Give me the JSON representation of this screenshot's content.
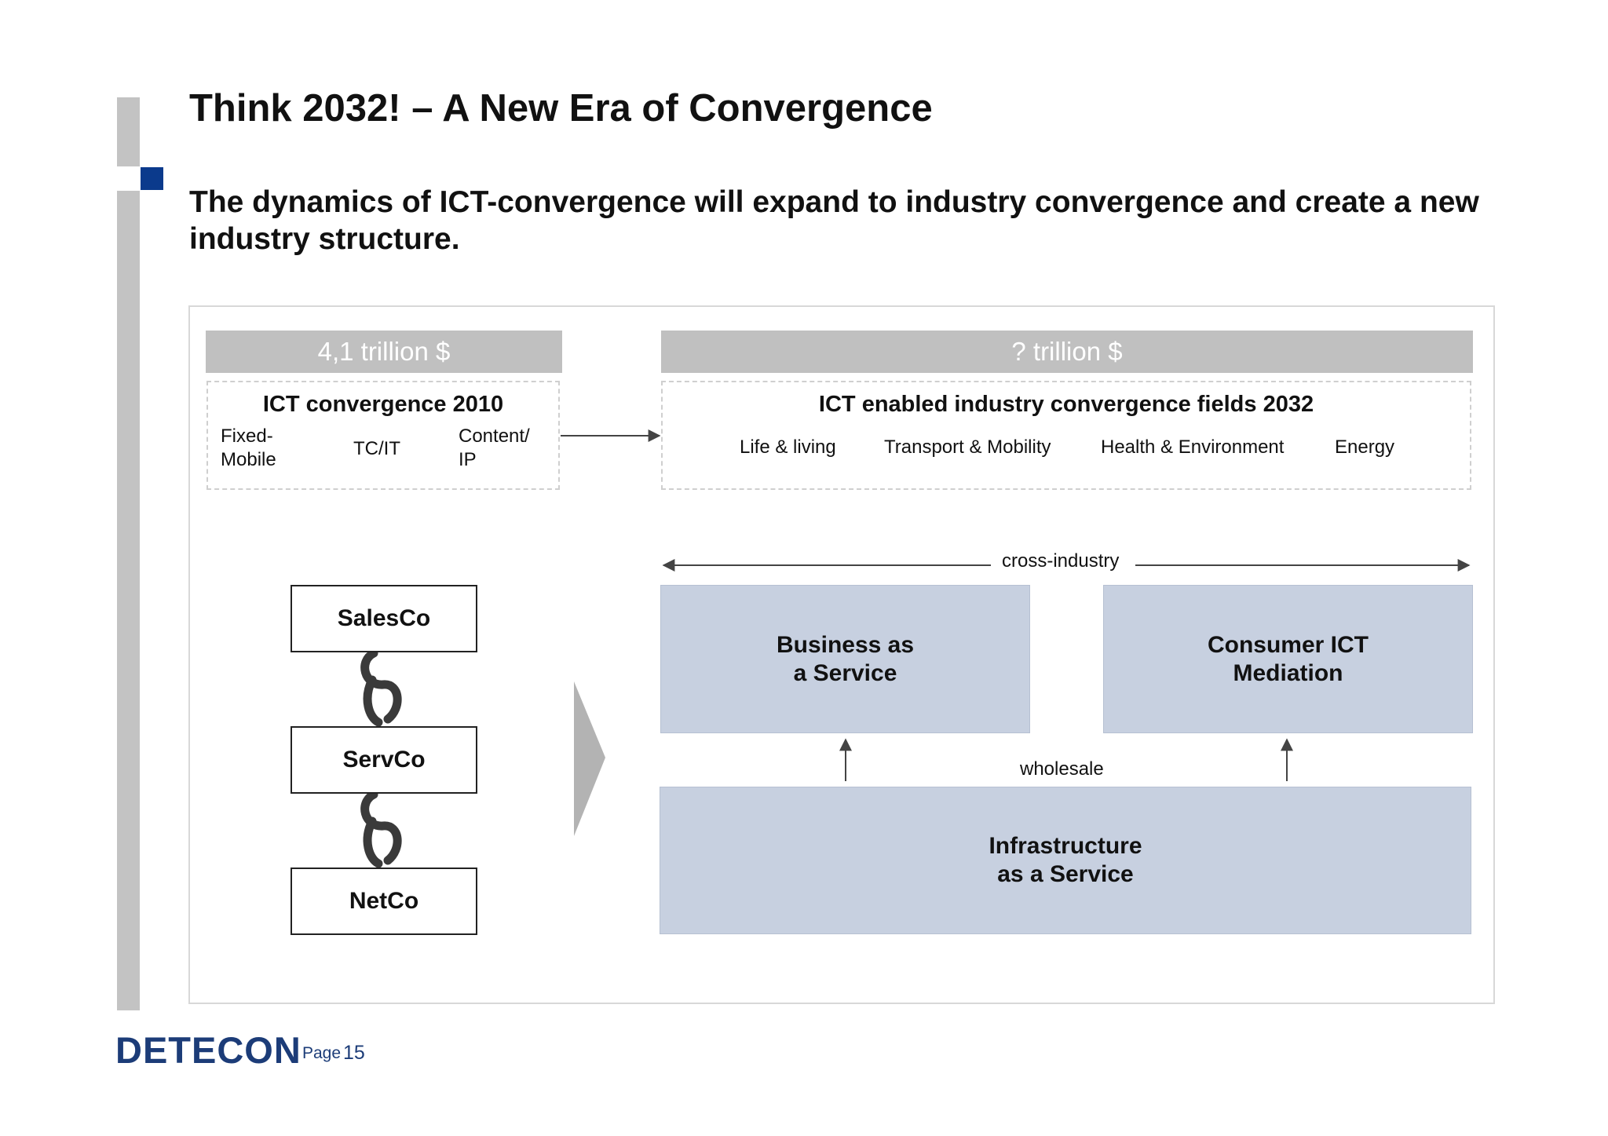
{
  "title": "Think 2032! – A New Era of Convergence",
  "subtitle": "The dynamics of ICT-convergence will expand to industry convergence and create a new industry structure.",
  "left_panel": {
    "value_header": "4,1 trillion $",
    "box_title": "ICT convergence 2010",
    "items": [
      "Fixed-\nMobile",
      "TC/IT",
      "Content/\nIP"
    ]
  },
  "right_panel": {
    "value_header": "? trillion $",
    "box_title": "ICT enabled industry convergence fields 2032",
    "fields": [
      "Life & living",
      "Transport & Mobility",
      "Health & Environment",
      "Energy"
    ]
  },
  "chain": [
    "SalesCo",
    "ServCo",
    "NetCo"
  ],
  "structure": {
    "cross_label": "cross-industry",
    "wholesale_label": "wholesale",
    "baas": "Business as\na Service",
    "consumer": "Consumer ICT\nMediation",
    "iaas": "Infrastructure\nas a Service"
  },
  "footer": {
    "logo": "DETECON",
    "page_label": "Page",
    "page_number": "15"
  },
  "colors": {
    "accent_blue": "#0b3a8c",
    "sidebar_gray": "#c3c3c3",
    "header_gray": "#c0c0c0",
    "service_box": "#c7d0e0",
    "logo_blue": "#1c3c78"
  }
}
